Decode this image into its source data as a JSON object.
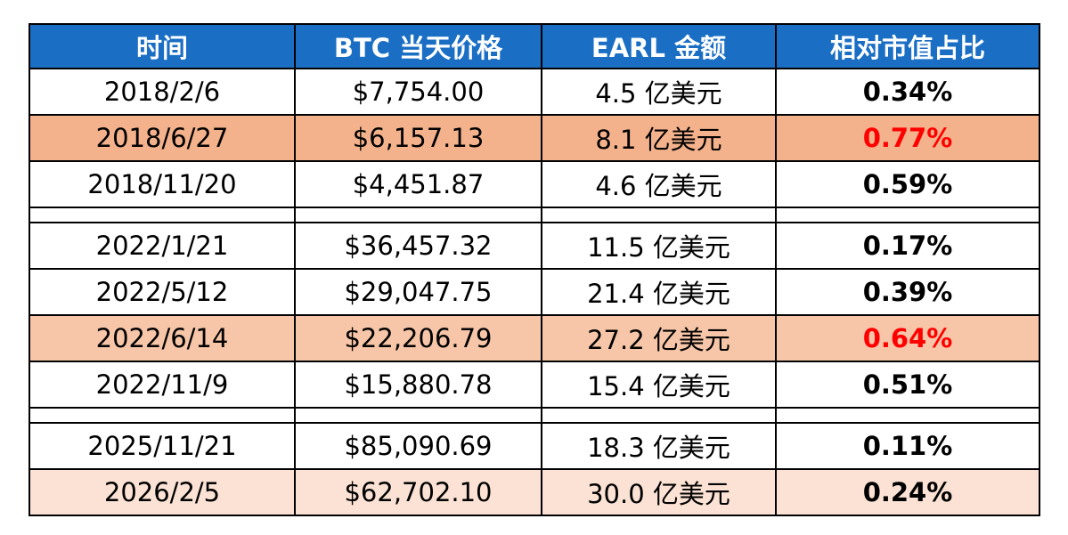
{
  "table": {
    "header": [
      "时间",
      "BTC 当天价格",
      "EARL 金额",
      "相对市值占比"
    ],
    "header_fill": "#1a6ec4",
    "groups": [
      {
        "rows": [
          {
            "cells": [
              "2018/2/6",
              "$7,754.00",
              "4.5 亿美元",
              "0.34%"
            ]
          },
          {
            "cells": [
              "2018/6/27",
              "$6,157.13",
              "8.1 亿美元",
              "0.77%"
            ],
            "fill": "#f4b28c",
            "emphasis": "#ff0000"
          },
          {
            "cells": [
              "2018/11/20",
              "$4,451.87",
              "4.6 亿美元",
              "0.59%"
            ]
          }
        ]
      },
      {
        "rows": [
          {
            "cells": [
              "2022/1/21",
              "$36,457.32",
              "11.5 亿美元",
              "0.17%"
            ]
          },
          {
            "cells": [
              "2022/5/12",
              "$29,047.75",
              "21.4 亿美元",
              "0.39%"
            ]
          },
          {
            "cells": [
              "2022/6/14",
              "$22,206.79",
              "27.2 亿美元",
              "0.64%"
            ],
            "fill": "#f7c6a8",
            "emphasis": "#ff0000"
          },
          {
            "cells": [
              "2022/11/9",
              "$15,880.78",
              "15.4 亿美元",
              "0.51%"
            ]
          }
        ]
      },
      {
        "rows": [
          {
            "cells": [
              "2025/11/21",
              "$85,090.69",
              "18.3 亿美元",
              "0.11%"
            ]
          },
          {
            "cells": [
              "2026/2/5",
              "$62,702.10",
              "30.0 亿美元",
              "0.24%"
            ],
            "fill": "#fbe2d4"
          }
        ]
      }
    ]
  }
}
